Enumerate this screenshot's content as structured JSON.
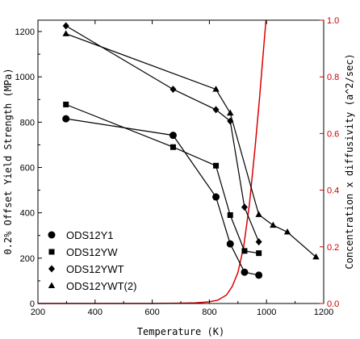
{
  "chart_data": {
    "type": "line",
    "xlabel": "Temperature (K)",
    "ylabel": "0.2% Offset Yield Strength (MPa)",
    "y2label": "Concentration x diffusivity (a^2/sec)",
    "xlim": [
      200,
      1200
    ],
    "ylim": [
      0,
      1250
    ],
    "y2lim": [
      0,
      1.0
    ],
    "xticks": [
      "200",
      "400",
      "600",
      "800",
      "1000",
      "1200"
    ],
    "yticks": [
      "0",
      "200",
      "400",
      "600",
      "800",
      "1000",
      "1200"
    ],
    "y2ticks": [
      "0.0",
      "0.2",
      "0.4",
      "0.6",
      "0.8",
      "1.0"
    ],
    "legend_position": "bottom-left",
    "series": [
      {
        "name": "ODS12Y1",
        "marker": "circle",
        "x": [
          298,
          673,
          823,
          873,
          923,
          973
        ],
        "y": [
          815,
          742,
          470,
          263,
          138,
          125
        ]
      },
      {
        "name": "ODS12YW",
        "marker": "square",
        "x": [
          298,
          673,
          823,
          873,
          923,
          973
        ],
        "y": [
          878,
          690,
          608,
          390,
          232,
          222
        ]
      },
      {
        "name": "ODS12YWT",
        "marker": "diamond",
        "x": [
          298,
          673,
          823,
          873,
          923,
          973
        ],
        "y": [
          1225,
          945,
          855,
          805,
          425,
          272
        ]
      },
      {
        "name": "ODS12YWT(2)",
        "marker": "triangle",
        "x": [
          298,
          823,
          873,
          973,
          1023,
          1073,
          1173
        ],
        "y": [
          1190,
          945,
          840,
          392,
          345,
          315,
          205
        ]
      }
    ],
    "curve": {
      "axis": "right",
      "color": "#dd0000",
      "x": [
        200,
        600,
        700,
        750,
        800,
        830,
        860,
        880,
        900,
        920,
        940,
        960,
        975,
        988,
        998
      ],
      "y": [
        0,
        0,
        0.001,
        0.002,
        0.006,
        0.012,
        0.03,
        0.06,
        0.11,
        0.2,
        0.35,
        0.55,
        0.72,
        0.88,
        1.0
      ]
    }
  }
}
